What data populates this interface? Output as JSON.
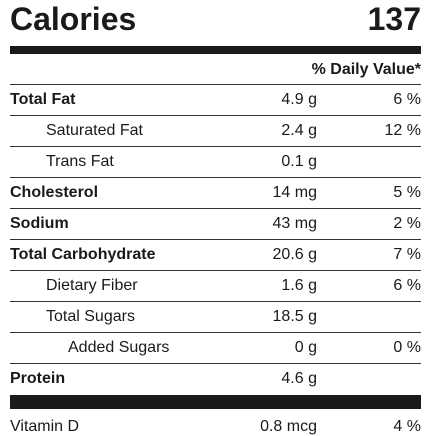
{
  "calories": {
    "label": "Calories",
    "value": "137"
  },
  "dv_header": "% Daily Value*",
  "rows": [
    {
      "name": "Total Fat",
      "amount": "4.9 g",
      "dv": "6 %"
    },
    {
      "name": "Saturated Fat",
      "amount": "2.4 g",
      "dv": "12 %"
    },
    {
      "name": "Trans Fat",
      "amount": "0.1 g",
      "dv": ""
    },
    {
      "name": "Cholesterol",
      "amount": "14 mg",
      "dv": "5 %"
    },
    {
      "name": "Sodium",
      "amount": "43 mg",
      "dv": "2 %"
    },
    {
      "name": "Total Carbohydrate",
      "amount": "20.6 g",
      "dv": "7 %"
    },
    {
      "name": "Dietary Fiber",
      "amount": "1.6 g",
      "dv": "6 %"
    },
    {
      "name": "Total Sugars",
      "amount": "18.5 g",
      "dv": ""
    },
    {
      "name": "Added Sugars",
      "amount": "0 g",
      "dv": "0 %"
    },
    {
      "name": "Protein",
      "amount": "4.6 g",
      "dv": ""
    }
  ],
  "vitamins": [
    {
      "name": "Vitamin D",
      "amount": "0.8 mcg",
      "dv": "4 %"
    }
  ]
}
